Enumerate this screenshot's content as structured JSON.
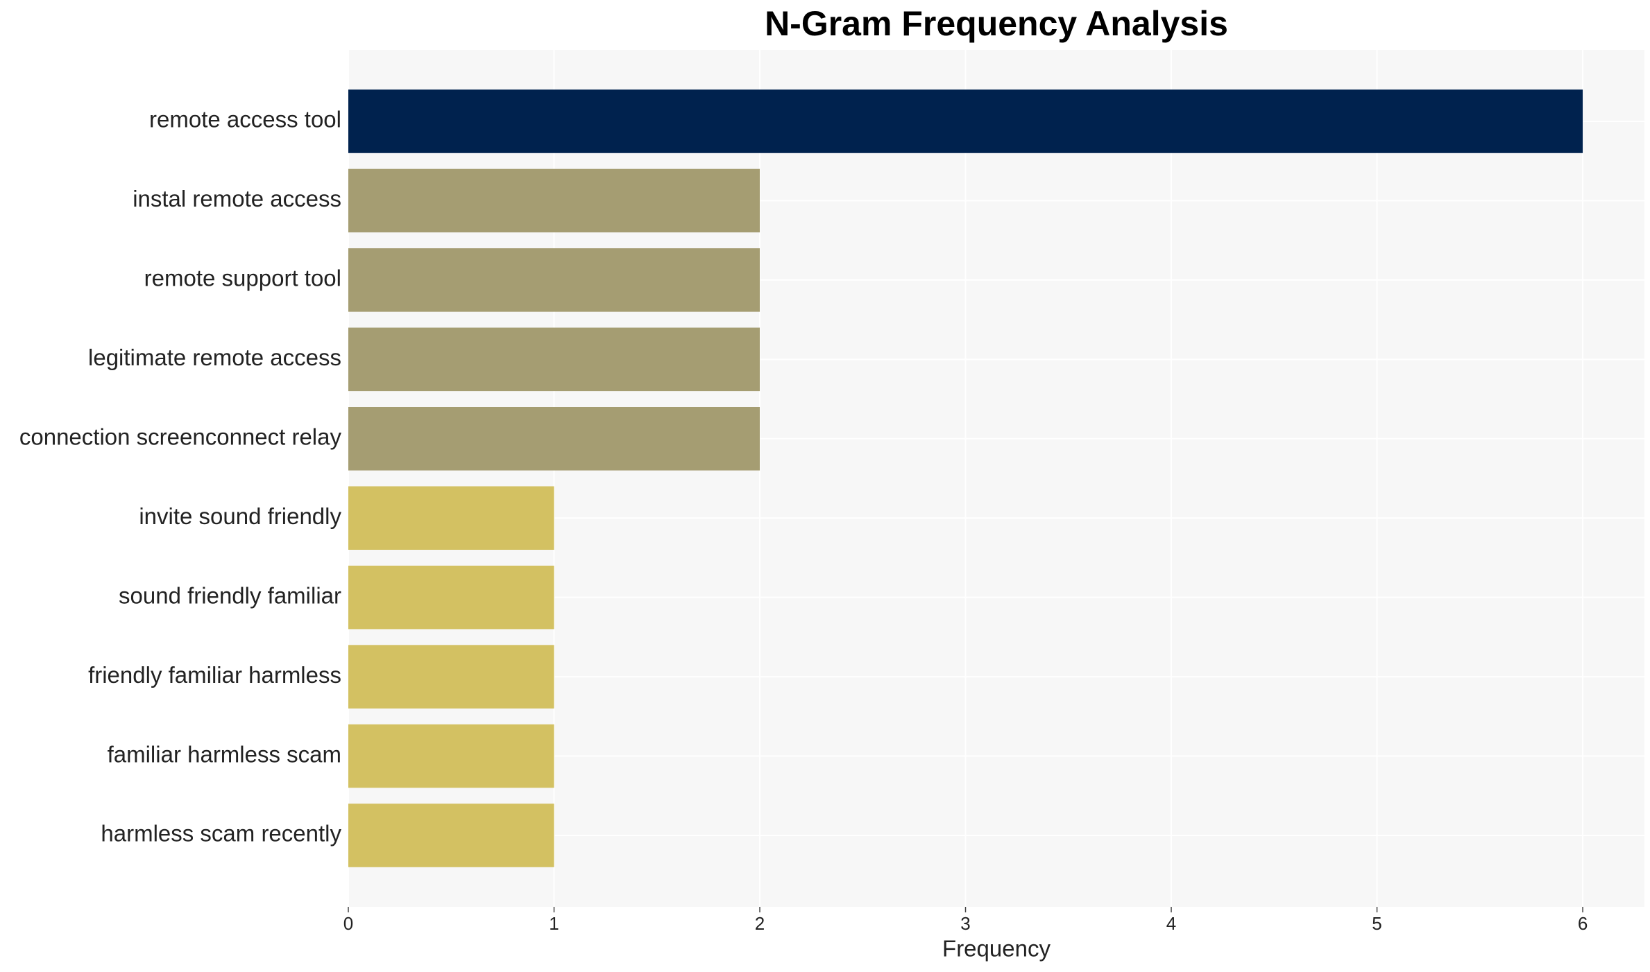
{
  "chart_data": {
    "type": "barh",
    "title": "N-Gram Frequency Analysis",
    "x_label": "Frequency",
    "categories": [
      "remote access tool",
      "instal remote access",
      "remote support tool",
      "legitimate remote access",
      "connection screenconnect relay",
      "invite sound friendly",
      "sound friendly familiar",
      "friendly familiar harmless",
      "familiar harmless scam",
      "harmless scam recently"
    ],
    "values": [
      6,
      2,
      2,
      2,
      2,
      1,
      1,
      1,
      1,
      1
    ],
    "colors": [
      "#00224e",
      "#a59d72",
      "#a59d72",
      "#a59d72",
      "#a59d72",
      "#d3c162",
      "#d3c162",
      "#d3c162",
      "#d3c162",
      "#d3c162"
    ],
    "xlim": [
      0,
      6.3
    ],
    "xticks": [
      0,
      1,
      2,
      3,
      4,
      5,
      6
    ],
    "grid": true
  }
}
